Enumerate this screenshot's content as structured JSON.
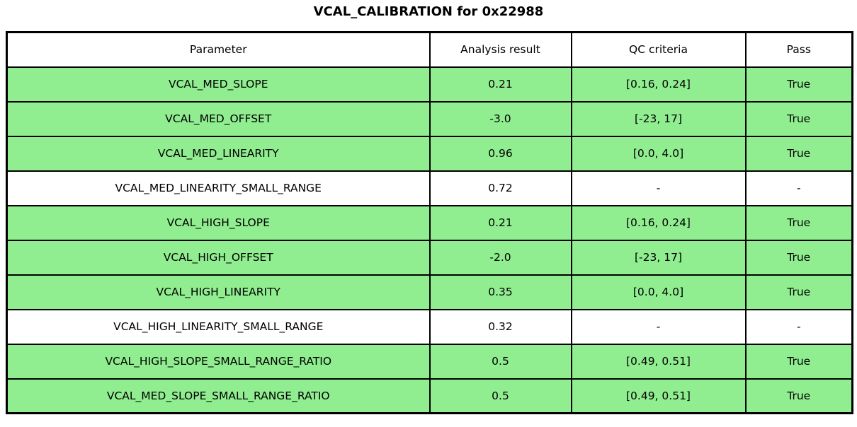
{
  "title": "VCAL_CALIBRATION for 0x22988",
  "colors": {
    "pass_row_bg": "#90EE90",
    "neutral_row_bg": "#FFFFFF",
    "border": "#000000",
    "text": "#000000"
  },
  "chart_data": {
    "type": "table",
    "title": "VCAL_CALIBRATION for 0x22988",
    "headers": [
      "Parameter",
      "Analysis result",
      "QC criteria",
      "Pass"
    ],
    "rows": [
      {
        "parameter": "VCAL_MED_SLOPE",
        "result": "0.21",
        "criteria": "[0.16, 0.24]",
        "pass": "True",
        "highlight": true
      },
      {
        "parameter": "VCAL_MED_OFFSET",
        "result": "-3.0",
        "criteria": "[-23, 17]",
        "pass": "True",
        "highlight": true
      },
      {
        "parameter": "VCAL_MED_LINEARITY",
        "result": "0.96",
        "criteria": "[0.0, 4.0]",
        "pass": "True",
        "highlight": true
      },
      {
        "parameter": "VCAL_MED_LINEARITY_SMALL_RANGE",
        "result": "0.72",
        "criteria": "-",
        "pass": "-",
        "highlight": false
      },
      {
        "parameter": "VCAL_HIGH_SLOPE",
        "result": "0.21",
        "criteria": "[0.16, 0.24]",
        "pass": "True",
        "highlight": true
      },
      {
        "parameter": "VCAL_HIGH_OFFSET",
        "result": "-2.0",
        "criteria": "[-23, 17]",
        "pass": "True",
        "highlight": true
      },
      {
        "parameter": "VCAL_HIGH_LINEARITY",
        "result": "0.35",
        "criteria": "[0.0, 4.0]",
        "pass": "True",
        "highlight": true
      },
      {
        "parameter": "VCAL_HIGH_LINEARITY_SMALL_RANGE",
        "result": "0.32",
        "criteria": "-",
        "pass": "-",
        "highlight": false
      },
      {
        "parameter": "VCAL_HIGH_SLOPE_SMALL_RANGE_RATIO",
        "result": "0.5",
        "criteria": "[0.49, 0.51]",
        "pass": "True",
        "highlight": true
      },
      {
        "parameter": "VCAL_MED_SLOPE_SMALL_RANGE_RATIO",
        "result": "0.5",
        "criteria": "[0.49, 0.51]",
        "pass": "True",
        "highlight": true
      }
    ]
  }
}
